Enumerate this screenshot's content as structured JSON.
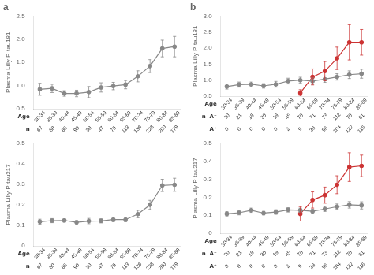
{
  "chart_data": [
    {
      "type": "line",
      "title": "a",
      "xlabel": "Age",
      "ylabel": "Plasma Lilly P-tau181",
      "categories": [
        "30-34",
        "35-39",
        "40-44",
        "45-49",
        "50-54",
        "55-59",
        "60-64",
        "65-69",
        "70-74",
        "75-79",
        "80-84",
        "85-89"
      ],
      "ylim": [
        0.5,
        2.5
      ],
      "yticks": [
        0.5,
        {
          "value": 1.0,
          "label": "1.0"
        },
        1.5,
        {
          "value": 2.0,
          "label": "2.0"
        },
        2.5
      ],
      "grid": false,
      "marker": "circle",
      "series": [
        {
          "color": "#888888",
          "values": [
            0.92,
            0.94,
            0.83,
            0.83,
            0.86,
            0.96,
            0.99,
            1.02,
            1.2,
            1.42,
            1.8,
            1.84
          ],
          "errors": [
            0.13,
            0.09,
            0.06,
            0.07,
            0.12,
            0.1,
            0.08,
            0.09,
            0.12,
            0.14,
            0.18,
            0.22
          ],
          "n_label": "n",
          "n": [
            67,
            60,
            86,
            90,
            30,
            47,
            79,
            113,
            136,
            228,
            200,
            179
          ]
        }
      ]
    },
    {
      "type": "line",
      "title": "b",
      "xlabel": "Age",
      "ylabel": "Plasma Lilly P-tau181",
      "categories": [
        "30-34",
        "35-39",
        "40-44",
        "45-49",
        "50-54",
        "55-59",
        "60-64",
        "65-69",
        "70-74",
        "75-79",
        "80-84",
        "85-89"
      ],
      "ylim": [
        0.5,
        3.0
      ],
      "yticks": [
        0.5,
        {
          "value": 1.0,
          "label": "1.0"
        },
        1.5,
        {
          "value": 2.0,
          "label": "2.0"
        },
        2.5,
        {
          "value": 3.0,
          "label": "3.0"
        }
      ],
      "grid": false,
      "marker": "circle",
      "series": [
        {
          "color": "#888888",
          "values": [
            0.8,
            0.86,
            0.87,
            0.82,
            0.87,
            0.97,
            1.0,
            0.97,
            1.03,
            1.1,
            1.17,
            1.2
          ],
          "errors": [
            0.08,
            0.08,
            0.07,
            0.07,
            0.09,
            0.09,
            0.09,
            0.1,
            0.1,
            0.1,
            0.12,
            0.14
          ],
          "n_label": "n  A⁻",
          "n": [
            20,
            21,
            19,
            30,
            19,
            45,
            70,
            71,
            73,
            112,
            70,
            61
          ]
        },
        {
          "color": "#cc3333",
          "values": [
            null,
            null,
            null,
            null,
            null,
            null,
            0.6,
            1.1,
            1.28,
            1.68,
            2.18,
            2.18
          ],
          "errors": [
            null,
            null,
            null,
            null,
            null,
            null,
            0.1,
            0.25,
            0.3,
            0.35,
            0.55,
            0.4
          ],
          "n_label": "A⁺",
          "n": [
            0,
            0,
            0,
            0,
            0,
            2,
            9,
            39,
            56,
            104,
            122,
            116
          ]
        }
      ]
    },
    {
      "type": "line",
      "xlabel": "Age",
      "ylabel": "Plasma Lilly P-tau217",
      "categories": [
        "30-34",
        "35-39",
        "40-44",
        "45-49",
        "50-54",
        "55-59",
        "60-64",
        "65-69",
        "70-74",
        "75-79",
        "80-84",
        "85-89"
      ],
      "ylim": [
        0,
        0.5
      ],
      "yticks": [
        0,
        0.1,
        0.2,
        0.3,
        0.4,
        0.5
      ],
      "grid": false,
      "marker": "circle",
      "series": [
        {
          "color": "#888888",
          "values": [
            0.118,
            0.123,
            0.124,
            0.115,
            0.121,
            0.122,
            0.128,
            0.128,
            0.155,
            0.2,
            0.295,
            0.298
          ],
          "errors": [
            0.012,
            0.01,
            0.008,
            0.008,
            0.013,
            0.01,
            0.01,
            0.01,
            0.018,
            0.022,
            0.03,
            0.032
          ],
          "n_label": "n",
          "n": [
            67,
            60,
            86,
            90,
            30,
            47,
            79,
            113,
            136,
            228,
            200,
            179
          ]
        }
      ]
    },
    {
      "type": "line",
      "xlabel": "Age",
      "ylabel": "Plasma Lilly P-tau217",
      "categories": [
        "30-34",
        "35-39",
        "40-44",
        "45-49",
        "50-54",
        "55-59",
        "60-64",
        "65-69",
        "70-74",
        "75-79",
        "80-84",
        "85-89"
      ],
      "ylim": [
        0,
        0.5
      ],
      "yticks": [
        0,
        0.1,
        0.2,
        0.3,
        0.4,
        0.5
      ],
      "grid": false,
      "marker": "circle",
      "series": [
        {
          "color": "#888888",
          "values": [
            0.108,
            0.114,
            0.128,
            0.112,
            0.118,
            0.13,
            0.128,
            0.122,
            0.135,
            0.148,
            0.158,
            0.155
          ],
          "errors": [
            0.012,
            0.012,
            0.012,
            0.01,
            0.013,
            0.012,
            0.012,
            0.012,
            0.014,
            0.015,
            0.018,
            0.02
          ],
          "n_label": "n  A⁻",
          "n": [
            20,
            21,
            19,
            30,
            19,
            45,
            70,
            71,
            73,
            112,
            70,
            61
          ]
        },
        {
          "color": "#cc3333",
          "values": [
            null,
            null,
            null,
            null,
            null,
            null,
            0.108,
            0.185,
            0.212,
            0.27,
            0.368,
            0.375
          ],
          "errors": [
            null,
            null,
            null,
            null,
            null,
            null,
            0.04,
            0.045,
            0.045,
            0.05,
            0.08,
            0.06
          ],
          "n_label": "A⁺",
          "n": [
            0,
            0,
            0,
            0,
            0,
            2,
            9,
            39,
            56,
            104,
            122,
            116
          ]
        }
      ]
    }
  ]
}
